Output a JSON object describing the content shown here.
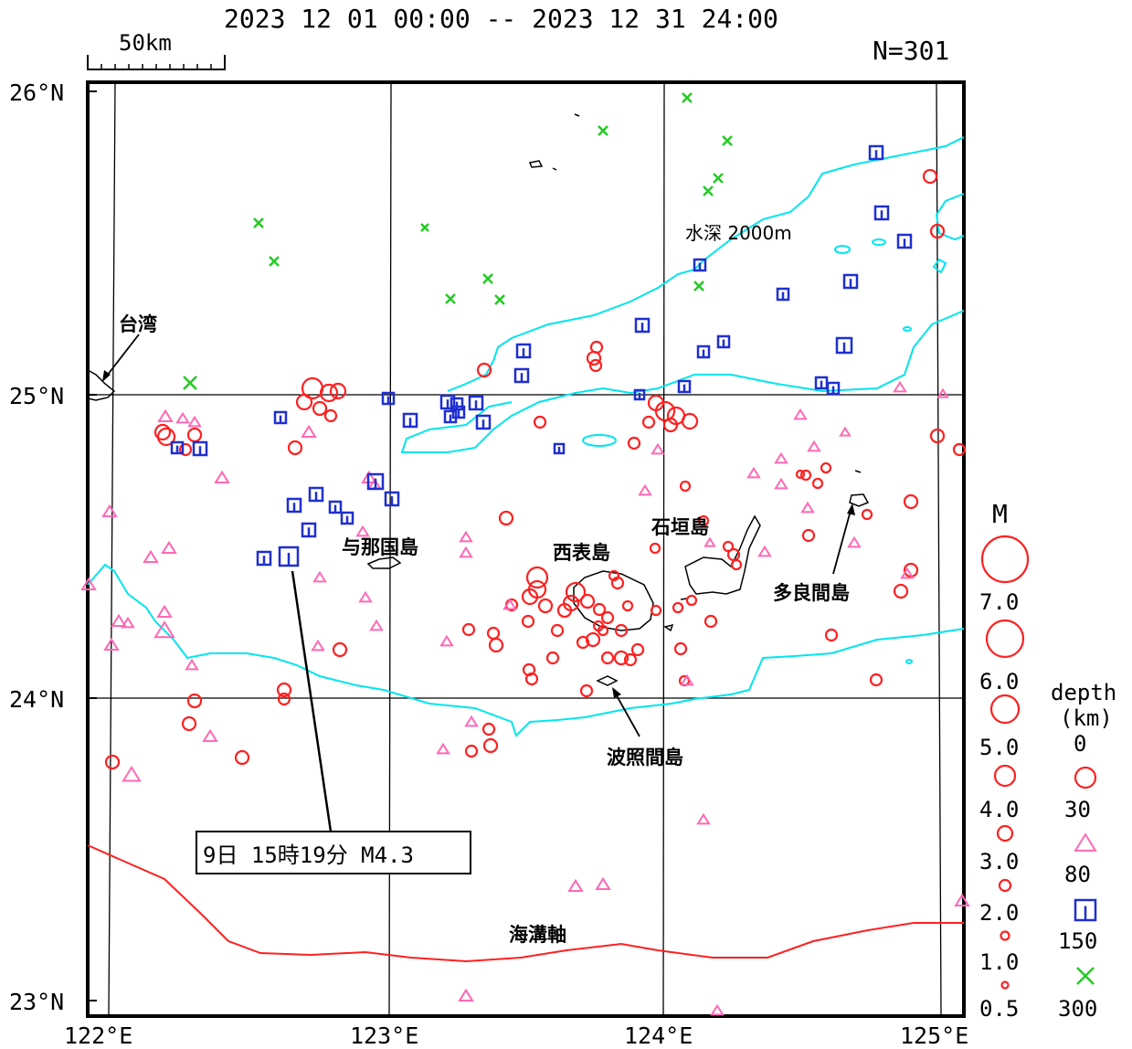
{
  "header": {
    "period": "2023 12 01 00:00 -- 2023 12 31 24:00",
    "count": "N=301",
    "scale_label": "50km"
  },
  "axes": {
    "lat_labels": [
      "26°N",
      "25°N",
      "24°N",
      "23°N"
    ],
    "lon_labels": [
      "122°E",
      "123°E",
      "124°E",
      "125°E"
    ]
  },
  "places": {
    "taiwan": "台湾",
    "yonaguni": "与那国島",
    "iriomote": "西表島",
    "ishigaki": "石垣島",
    "tarama": "多良間島",
    "hateruma": "波照間島",
    "trench": "海溝軸",
    "depth_contour": "水深 2000m"
  },
  "callout": "9日 15時19分 M4.3",
  "legend": {
    "m_title": "M",
    "magnitudes": [
      "7.0",
      "6.0",
      "5.0",
      "4.0",
      "3.0",
      "2.0",
      "1.0",
      "0.5"
    ],
    "depth_title_1": "depth",
    "depth_title_2": "(km)",
    "depths": [
      "0",
      "30",
      "80",
      "150",
      "300"
    ]
  },
  "colors": {
    "shallow_0_30": "#ff2020",
    "depth_30_80": "#ff69b4",
    "depth_80_150": "#1f2fd0",
    "depth_150_300": "#22cc22",
    "contour_2000m": "#00e5ee",
    "trench_axis": "#ff2020",
    "coastline": "#000000"
  }
}
